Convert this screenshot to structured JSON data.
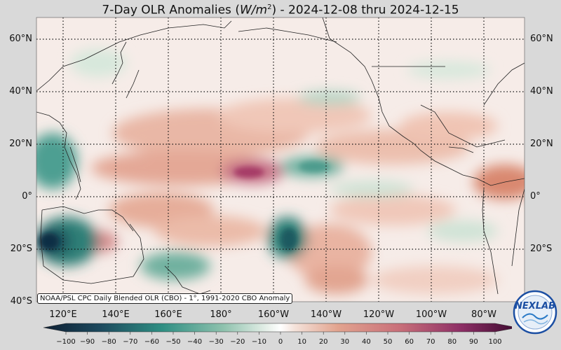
{
  "title_prefix": "7-Day OLR Anomalies (",
  "title_units": "W/m",
  "title_units_sup": "2",
  "title_suffix": ") - 2024-12-08 thru 2024-12-15",
  "credit": "NOAA/PSL CPC Daily Blended OLR (CBO) - 1°, 1991-2020 CBO Anomaly",
  "lat_labels": [
    "60°N",
    "40°N",
    "20°N",
    "0°",
    "20°S",
    "40°S"
  ],
  "lon_labels": [
    "120°E",
    "140°E",
    "160°E",
    "180°",
    "160°W",
    "140°W",
    "120°W",
    "100°W",
    "80°W"
  ],
  "colorbar_ticks": [
    "−100",
    "−90",
    "−80",
    "−70",
    "−60",
    "−50",
    "−40",
    "−30",
    "−20",
    "−10",
    "0",
    "10",
    "20",
    "30",
    "40",
    "50",
    "60",
    "70",
    "80",
    "90",
    "100"
  ],
  "logo_text": "NEXLAB",
  "colors": {
    "negative_strong": "#0e2a3f",
    "negative": "#2f8f83",
    "positive": "#c98a7c",
    "positive_strong": "#a3325f",
    "neutral": "#f7f2ee"
  }
}
